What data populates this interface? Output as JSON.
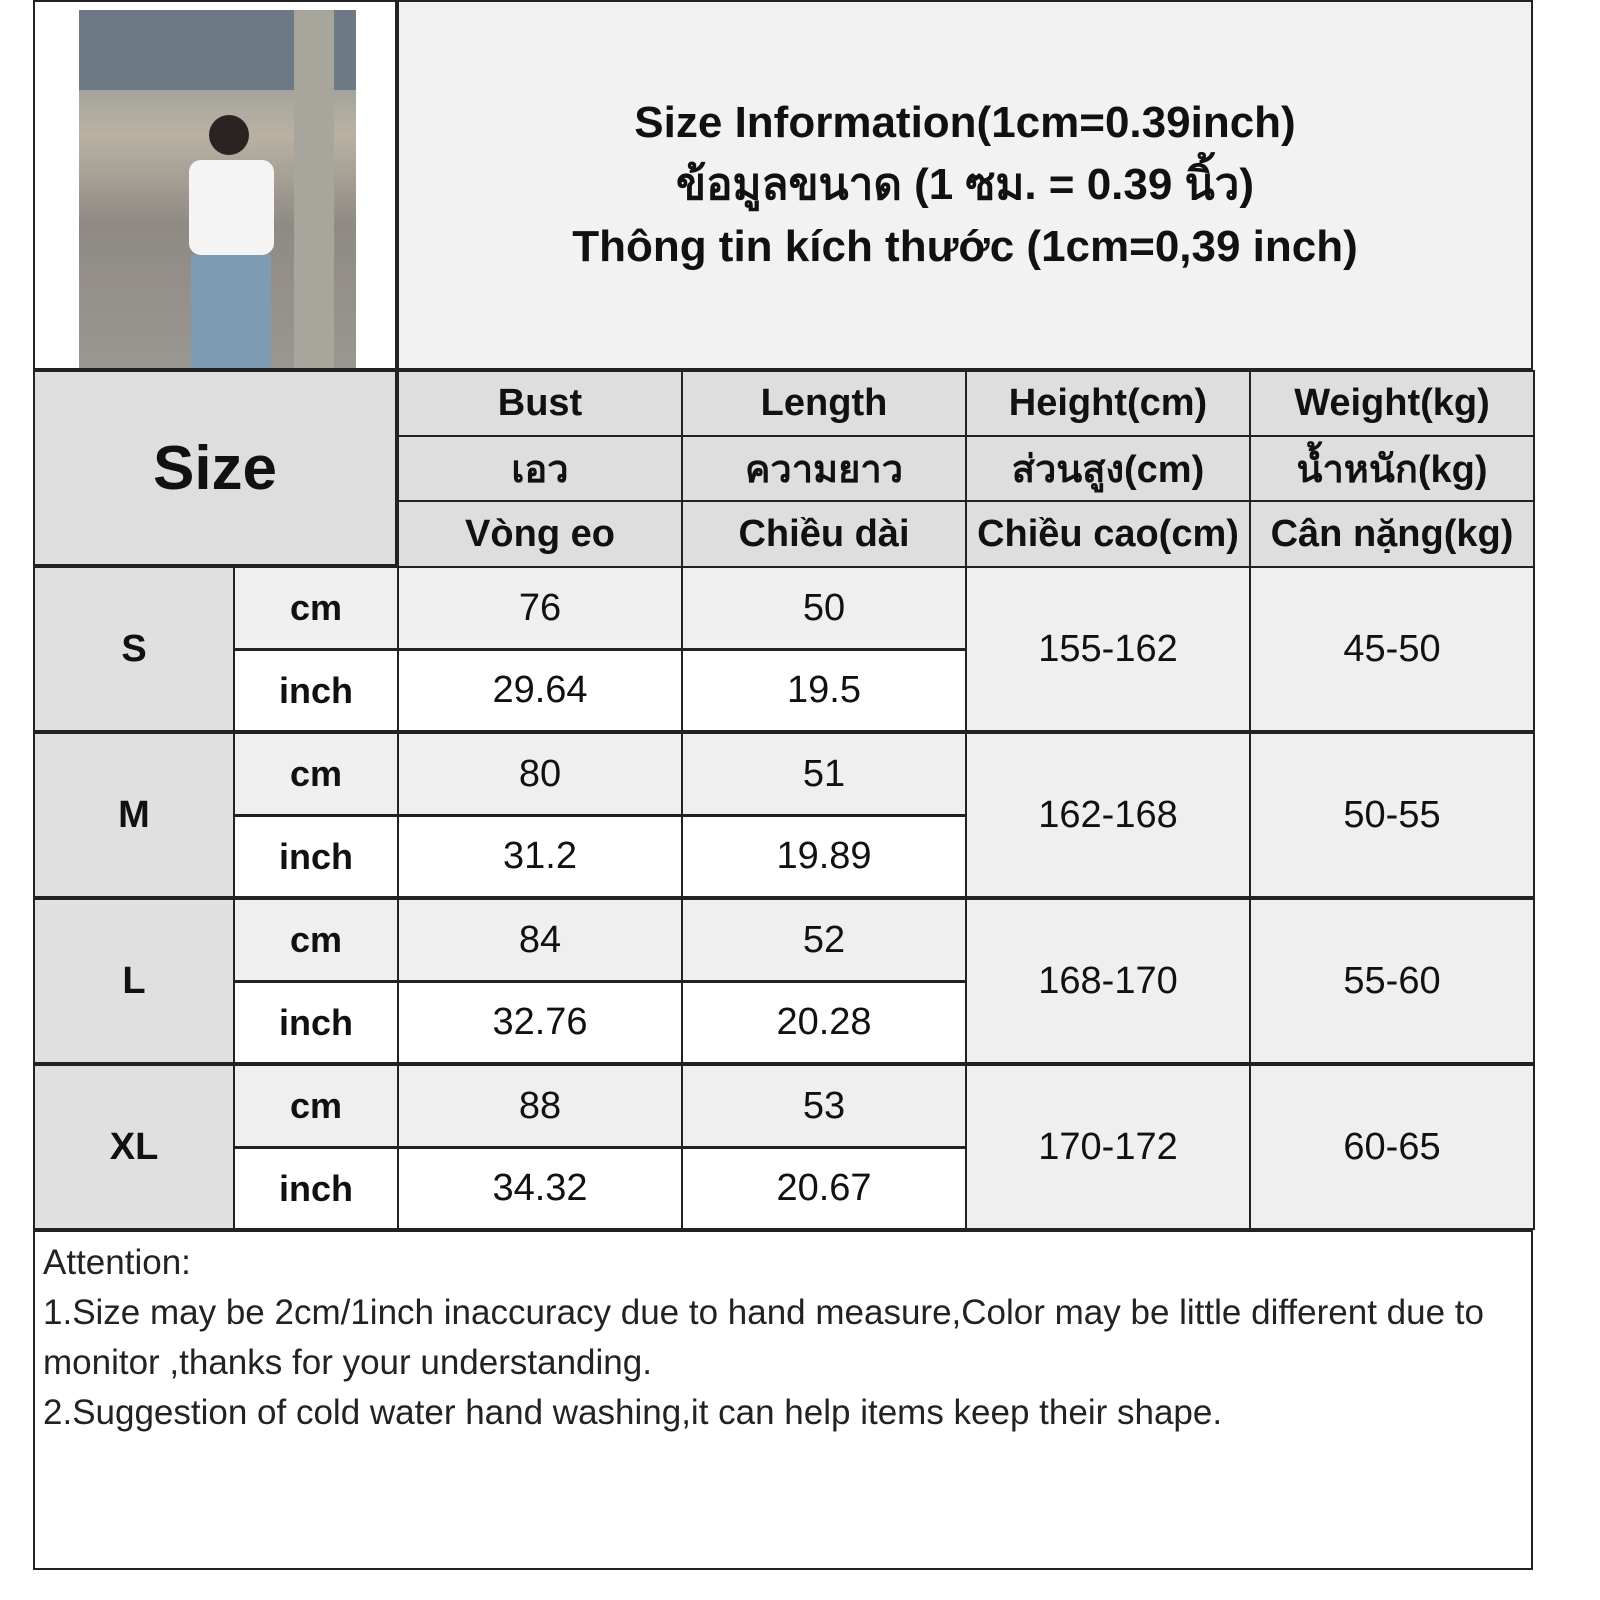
{
  "title": {
    "line1": "Size Information(1cm=0.39inch)",
    "line2": "ข้อมูลขนาด (1 ซม. = 0.39 นิ้ว)",
    "line3": "Thông tin kích thước (1cm=0,39 inch)"
  },
  "header": {
    "size_label": "Size",
    "columns": [
      {
        "en": "Bust",
        "th": "เอว",
        "vi": "Vòng eo"
      },
      {
        "en": "Length",
        "th": "ความยาว",
        "vi": "Chiều dài"
      },
      {
        "en": "Height(cm)",
        "th": "ส่วนสูง(cm)",
        "vi": "Chiều cao(cm)"
      },
      {
        "en": "Weight(kg)",
        "th": "น้ำหนัก(kg)",
        "vi": "Cân nặng(kg)"
      }
    ]
  },
  "units": {
    "cm": "cm",
    "inch": "inch"
  },
  "rows": [
    {
      "size": "S",
      "bust_cm": "76",
      "length_cm": "50",
      "bust_inch": "29.64",
      "length_inch": "19.5",
      "height": "155-162",
      "weight": "45-50"
    },
    {
      "size": "M",
      "bust_cm": "80",
      "length_cm": "51",
      "bust_inch": "31.2",
      "length_inch": "19.89",
      "height": "162-168",
      "weight": "50-55"
    },
    {
      "size": "L",
      "bust_cm": "84",
      "length_cm": "52",
      "bust_inch": "32.76",
      "length_inch": "20.28",
      "height": "168-170",
      "weight": "55-60"
    },
    {
      "size": "XL",
      "bust_cm": "88",
      "length_cm": "53",
      "bust_inch": "34.32",
      "length_inch": "20.67",
      "height": "170-172",
      "weight": "60-65"
    }
  ],
  "notes": {
    "heading": "Attention:",
    "items": [
      "1.Size may be 2cm/1inch inaccuracy due to hand measure,Color may be little different due to monitor ,thanks for your understanding.",
      "2.Suggestion of cold water hand washing,it can help items keep their shape."
    ]
  }
}
